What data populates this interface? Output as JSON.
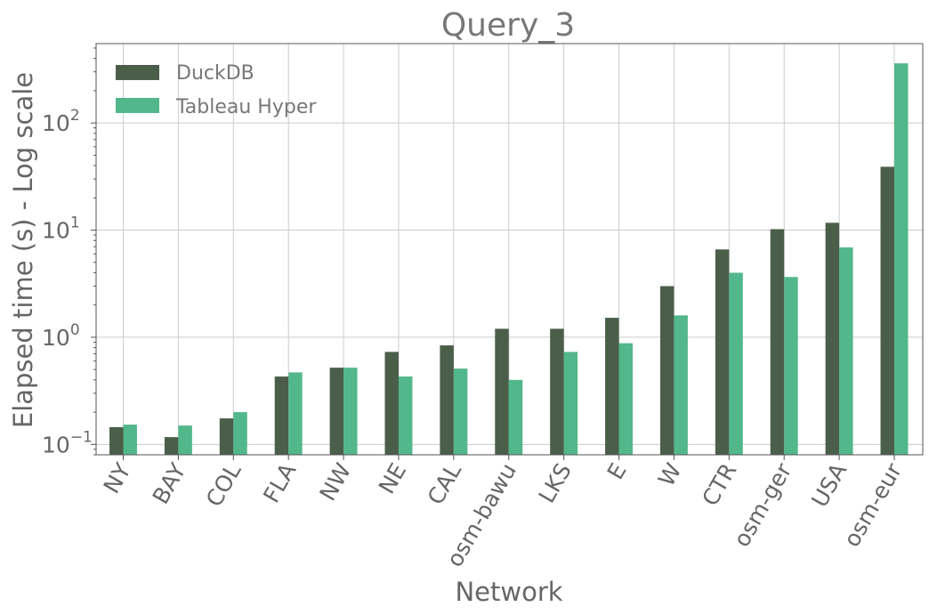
{
  "chart_data": {
    "type": "bar",
    "title": "Query_3",
    "xlabel": "Network",
    "ylabel": "Elapsed time (s) - Log scale",
    "yscale": "log",
    "ylim": [
      0.08,
      550
    ],
    "grid": true,
    "legend_position": "top-left",
    "categories": [
      "NY",
      "BAY",
      "COL",
      "FLA",
      "NW",
      "NE",
      "CAL",
      "osm-bawu",
      "LKS",
      "E",
      "W",
      "CTR",
      "osm-ger",
      "USA",
      "osm-eur"
    ],
    "series": [
      {
        "name": "DuckDB",
        "color": "#4b5e4a",
        "values": [
          0.145,
          0.117,
          0.175,
          0.43,
          0.52,
          0.73,
          0.84,
          1.2,
          1.2,
          1.52,
          3.0,
          6.6,
          10.2,
          11.7,
          39
        ]
      },
      {
        "name": "Tableau Hyper",
        "color": "#52b78a",
        "values": [
          0.153,
          0.15,
          0.2,
          0.47,
          0.52,
          0.43,
          0.51,
          0.4,
          0.73,
          0.88,
          1.6,
          4.0,
          3.65,
          6.9,
          360
        ]
      }
    ],
    "yticks": [
      {
        "value": 0.1,
        "base": "10",
        "exp": "−1"
      },
      {
        "value": 1,
        "base": "10",
        "exp": "0"
      },
      {
        "value": 10,
        "base": "10",
        "exp": "1"
      },
      {
        "value": 100,
        "base": "10",
        "exp": "2"
      }
    ]
  }
}
